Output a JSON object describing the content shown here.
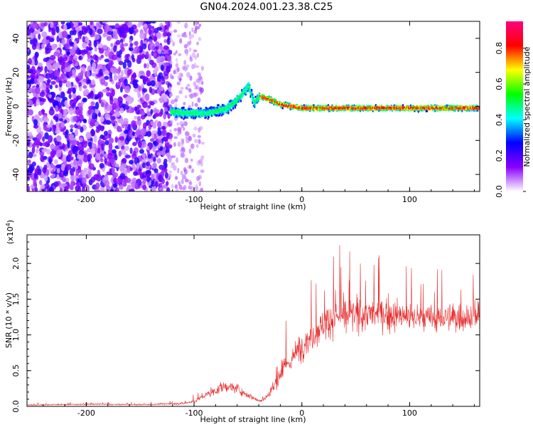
{
  "title": "GN04.2024.001.23.38.C25",
  "chart_data": [
    {
      "type": "heatmap",
      "xlabel": "Height of straight line (km)",
      "ylabel": "Frequency (Hz)",
      "xlim": [
        -255,
        165
      ],
      "ylim": [
        -50,
        50
      ],
      "x_ticks": [
        -200,
        -100,
        0,
        100
      ],
      "x_tick_labels": [
        "-200",
        "-100",
        "0",
        "100"
      ],
      "y_ticks": [
        -40,
        -20,
        0,
        20,
        40
      ],
      "y_tick_labels": [
        "-40",
        "-20",
        "0",
        "20",
        "40"
      ],
      "colorbar": {
        "label": "Normalized spectral amplitude",
        "range": [
          0.0,
          0.95
        ],
        "ticks": [
          0.0,
          0.2,
          0.4,
          0.6,
          0.8
        ],
        "tick_labels": [
          "0.0",
          "0.2",
          "0.4",
          "0.6",
          "0.8"
        ],
        "colormap": [
          "#ffffff",
          "#8a00ff",
          "#0000ff",
          "#00ffff",
          "#00ff00",
          "#ffff00",
          "#ff0000",
          "#ff0080"
        ]
      },
      "ridge": {
        "x": [
          -122,
          -110,
          -100,
          -90,
          -80,
          -70,
          -62,
          -55,
          -50,
          -45,
          -40,
          -35,
          -30,
          -20,
          -10,
          0,
          20,
          40,
          60,
          80,
          100,
          120,
          140,
          163
        ],
        "freq": [
          -3,
          -4,
          -4,
          -4,
          -3,
          -1,
          3,
          8,
          12,
          2,
          6,
          5,
          4,
          1,
          0,
          -1,
          -1,
          -1,
          -1,
          -1,
          -1,
          -1,
          -1,
          -1
        ]
      }
    },
    {
      "type": "line",
      "xlabel": "Height of straight line (km)",
      "ylabel": "SNR (10 * v/v)",
      "y_multiplier_label": "(x10",
      "y_multiplier_exp": "4",
      "xlim": [
        -255,
        165
      ],
      "ylim": [
        0,
        24000
      ],
      "x_ticks": [
        -200,
        -100,
        0,
        100
      ],
      "x_tick_labels": [
        "-200",
        "-100",
        "0",
        "100"
      ],
      "y_ticks": [
        0,
        5000,
        10000,
        15000,
        20000
      ],
      "y_tick_labels": [
        "0.0",
        "0.5",
        "1.0",
        "1.5",
        "2.0"
      ],
      "color": "#e82a2a",
      "envelope": {
        "x": [
          -255,
          -200,
          -150,
          -110,
          -100,
          -90,
          -80,
          -70,
          -60,
          -55,
          -50,
          -40,
          -35,
          -30,
          -25,
          -20,
          -15,
          -10,
          -5,
          0,
          10,
          20,
          30,
          50,
          70,
          90,
          110,
          130,
          150,
          165
        ],
        "mean": [
          200,
          300,
          250,
          400,
          700,
          1500,
          2200,
          2800,
          2500,
          2000,
          1600,
          800,
          1000,
          1800,
          3000,
          4500,
          5500,
          6500,
          7500,
          8500,
          10000,
          11500,
          12500,
          12800,
          13000,
          12700,
          12300,
          12300,
          12500,
          12700
        ],
        "spread": [
          150,
          200,
          150,
          300,
          500,
          900,
          1300,
          1600,
          1400,
          1200,
          900,
          500,
          700,
          1500,
          2500,
          3000,
          3200,
          3500,
          3800,
          4000,
          4500,
          5000,
          5000,
          5000,
          5000,
          4600,
          4200,
          4000,
          4200,
          4500
        ]
      }
    }
  ]
}
